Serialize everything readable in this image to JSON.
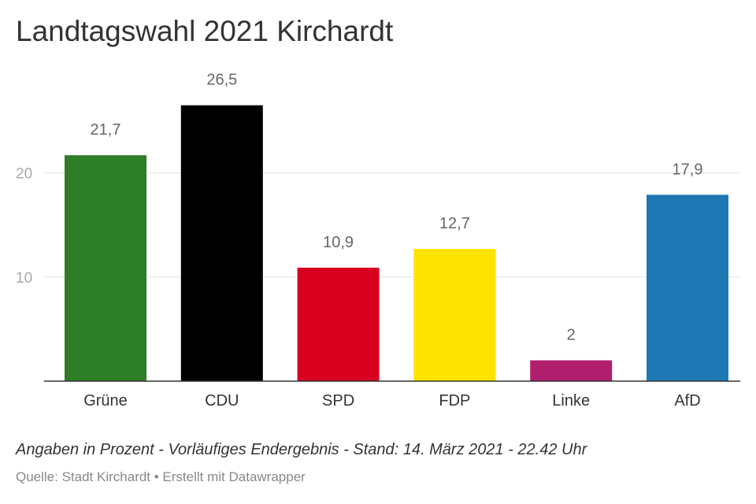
{
  "title": "Landtagswahl 2021 Kirchardt",
  "notes": "Angaben in Prozent - Vorläufiges Endergebnis - Stand: 14. März 2021 - 22.42 Uhr",
  "source": "Quelle: Stadt Kirchardt • Erstellt mit Datawrapper",
  "chart_data": {
    "type": "bar",
    "title": "Landtagswahl 2021 Kirchardt",
    "xlabel": "",
    "ylabel": "",
    "categories": [
      "Grüne",
      "CDU",
      "SPD",
      "FDP",
      "Linke",
      "AfD"
    ],
    "values": [
      21.7,
      26.5,
      10.9,
      12.7,
      2,
      17.9
    ],
    "value_labels": [
      "21,7",
      "26,5",
      "10,9",
      "12,7",
      "2",
      "17,9"
    ],
    "colors": [
      "#2e7d27",
      "#000000",
      "#d7001f",
      "#ffe300",
      "#b01f6e",
      "#1f77b4"
    ],
    "y_ticks": [
      10,
      20
    ],
    "y_tick_labels": [
      "10",
      "20"
    ],
    "ylim": [
      0,
      26.5
    ],
    "grid": true,
    "legend": "none"
  }
}
